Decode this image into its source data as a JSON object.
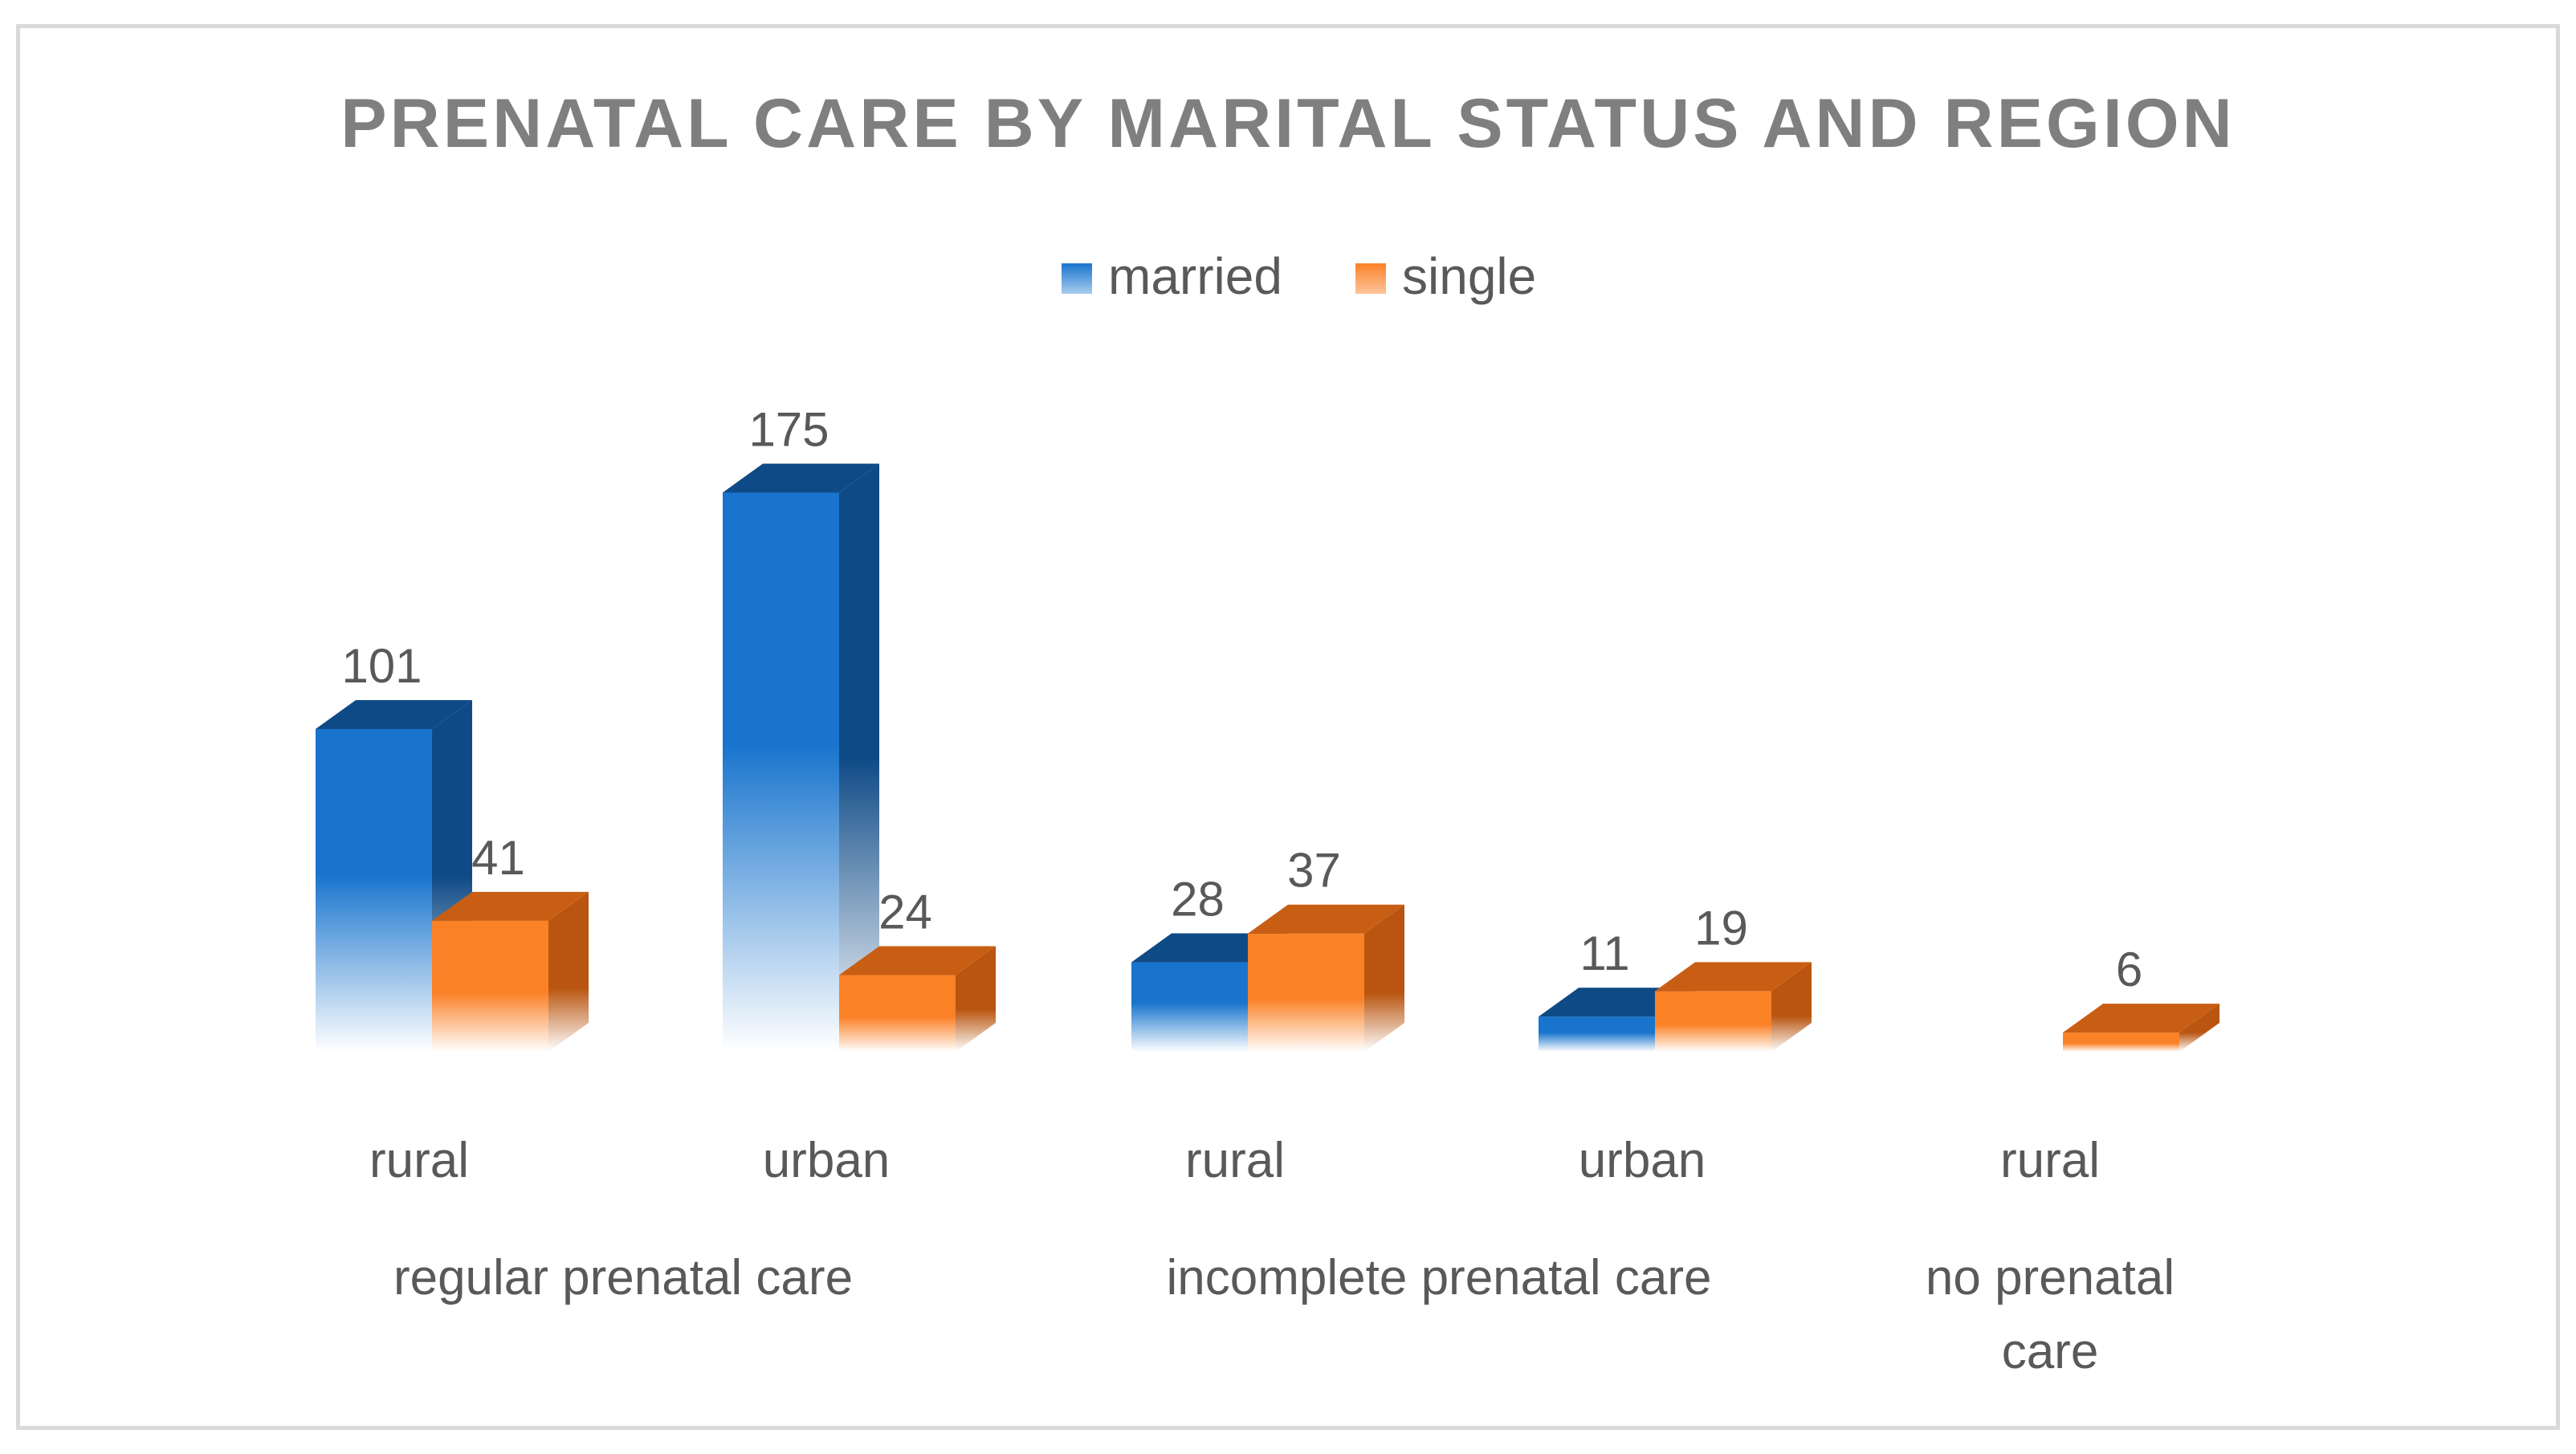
{
  "chart_data": {
    "type": "bar",
    "style": "3d-clustered-column",
    "title": "PRENATAL CARE BY MARITAL STATUS AND REGION",
    "xlabel": "",
    "ylabel": "",
    "ylim": [
      0,
      175
    ],
    "grid": false,
    "legend_position": "top-center",
    "categories": [
      {
        "label": "rural",
        "group": "regular prenatal care"
      },
      {
        "label": "urban",
        "group": "regular prenatal care"
      },
      {
        "label": "rural",
        "group": "incomplete prenatal care"
      },
      {
        "label": "urban",
        "group": "incomplete prenatal care"
      },
      {
        "label": "rural",
        "group": "no prenatal care"
      }
    ],
    "groups": [
      {
        "name": "regular prenatal care",
        "lines": [
          "regular prenatal care"
        ]
      },
      {
        "name": "incomplete prenatal care",
        "lines": [
          "incomplete prenatal care"
        ]
      },
      {
        "name": "no prenatal care",
        "lines": [
          "no prenatal",
          "care"
        ]
      }
    ],
    "series": [
      {
        "name": "married",
        "color": "#1874cd",
        "values": [
          101,
          175,
          28,
          11,
          null
        ]
      },
      {
        "name": "single",
        "color": "#fb8127",
        "values": [
          41,
          24,
          37,
          19,
          6
        ]
      }
    ]
  },
  "colors": {
    "title": "#7f7f7f",
    "text": "#595959",
    "frame": "#d9d9d9"
  }
}
